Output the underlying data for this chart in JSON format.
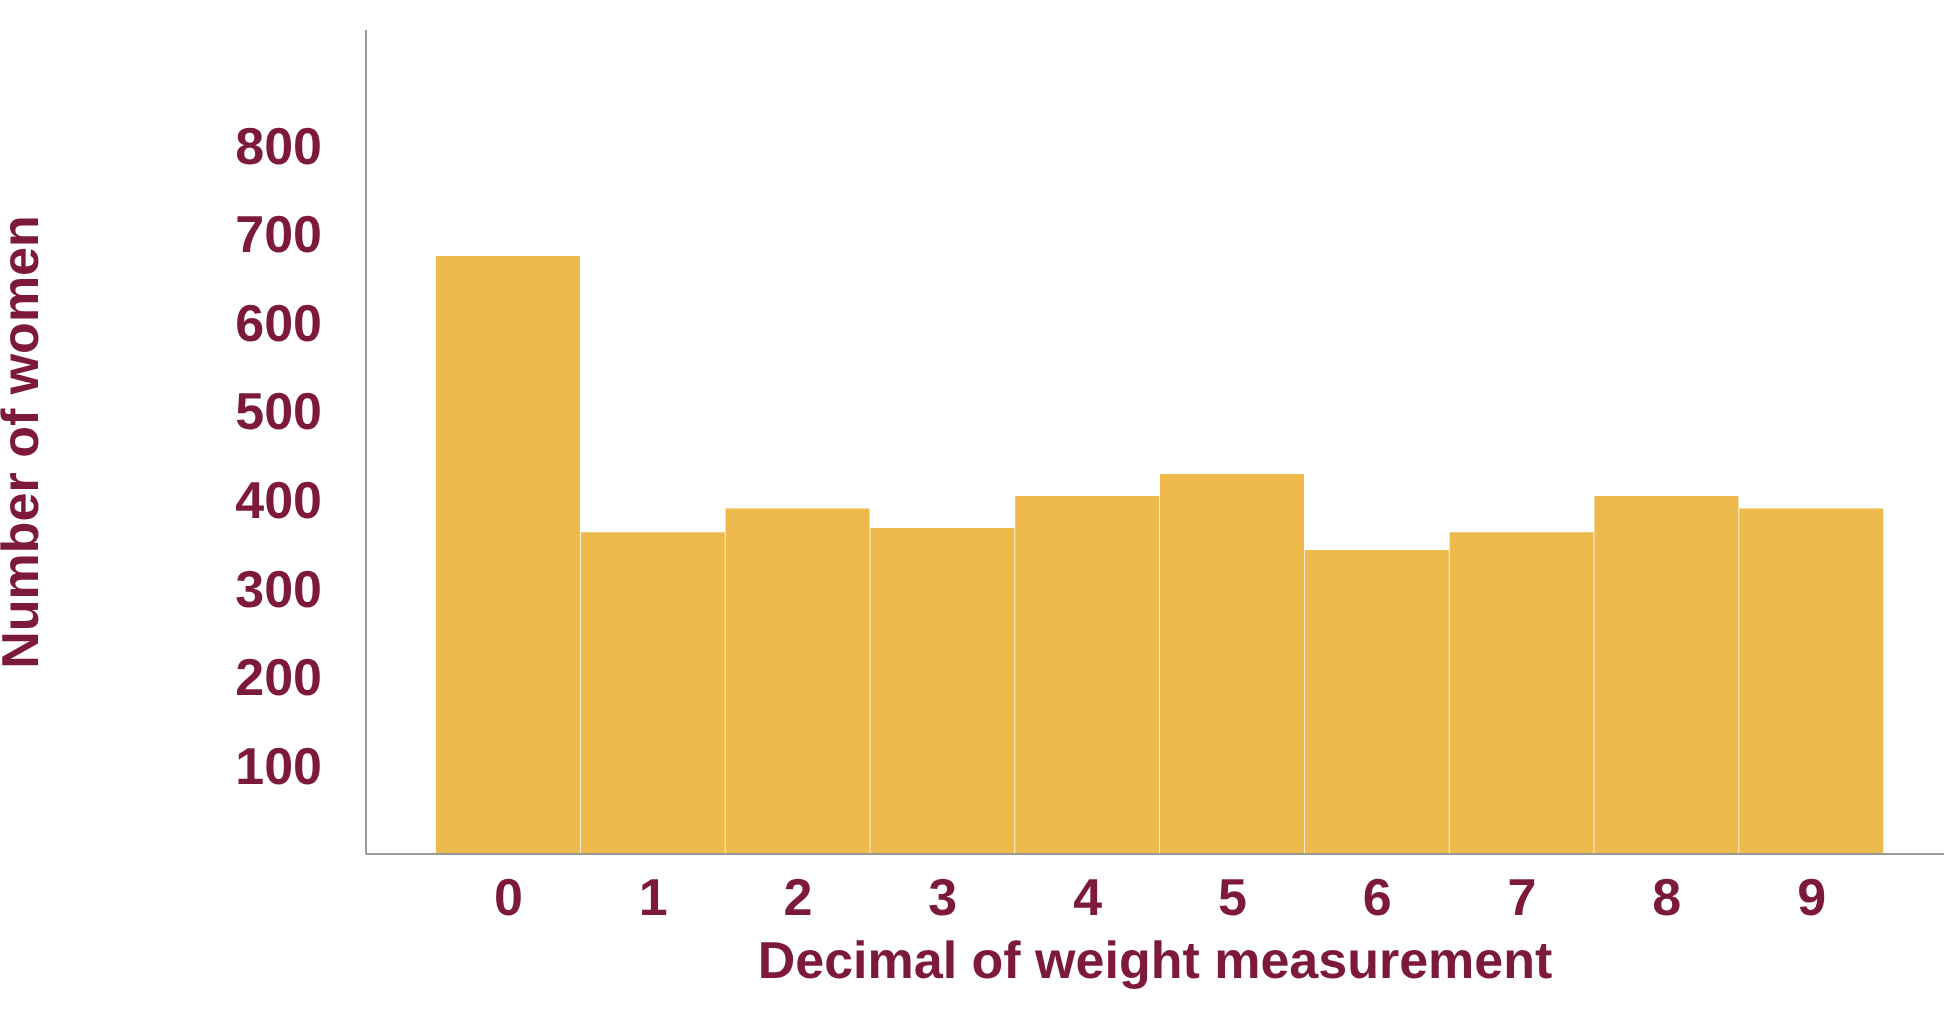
{
  "chart_data": {
    "type": "bar",
    "xlabel": "Decimal of weight measurement",
    "ylabel": "Number of women",
    "categories": [
      "0",
      "1",
      "2",
      "3",
      "4",
      "5",
      "6",
      "7",
      "8",
      "9"
    ],
    "values": [
      675,
      363,
      390,
      368,
      404,
      429,
      343,
      363,
      404,
      390
    ],
    "color": "#eeba4c",
    "ylim": [
      0,
      930
    ],
    "yticks": [
      100,
      200,
      300,
      400,
      500,
      600,
      700,
      800
    ],
    "grid": false,
    "legend": false
  }
}
